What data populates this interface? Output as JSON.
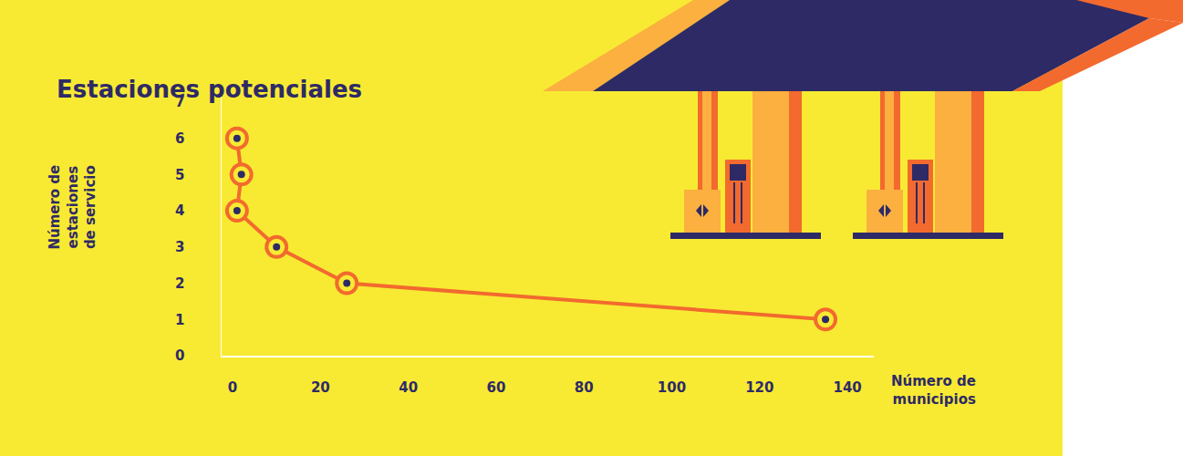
{
  "chart_data": {
    "type": "line",
    "title": "Estaciones potenciales",
    "x_label": "Número de municipios",
    "y_label": "Número de estaciones de servicio",
    "x": [
      1,
      2,
      1,
      10,
      26,
      135
    ],
    "values": [
      6,
      5,
      4,
      3,
      2,
      1
    ],
    "xlim": [
      -2.5,
      146
    ],
    "xticks": [
      0,
      20,
      40,
      60,
      80,
      100,
      120,
      140
    ],
    "ylim": [
      0,
      7.3
    ],
    "yticks": [
      0,
      1,
      2,
      3,
      4,
      5,
      6,
      7
    ],
    "color": "#f26a2e",
    "marker": "circle",
    "grid": false
  }
}
